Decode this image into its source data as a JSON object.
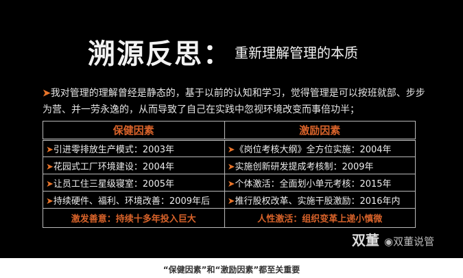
{
  "title": {
    "main": "溯源反思：",
    "sub": "重新理解管理的本质"
  },
  "intro": "我对管理的理解曾经是静态的，基于以前的认知和学习，觉得管理是可以按班就部、步步为营、并一劳永逸的，从而导致了自己在实践中忽视环境改变而事倍功半；",
  "table": {
    "headers": [
      "保健因素",
      "激励因素"
    ],
    "rows": [
      [
        "引进零排放生产模式：2003年",
        "《岗位考核大纲》全方位实施：2004年"
      ],
      [
        "花园式工厂环境建设：2004年",
        "实施创新研发提成考核制：2009年"
      ],
      [
        "让员工住三星级寝室：2005年",
        "个体激活：全面划小单元考核：2015年"
      ],
      [
        "持续硬件、福利、环境改善：2009年后",
        "推行股权改革、实施干股激励：2016年内"
      ]
    ],
    "footer": [
      "激发善意：持续十多年投入巨大",
      "人性激活：组织变革上递小慎微"
    ]
  },
  "watermark": {
    "left": "双董",
    "right": "双董说管"
  },
  "caption": "“保健因素”和“激励因素”都至关重要",
  "colors": {
    "accent": "#d9632a",
    "background": "#000000"
  }
}
